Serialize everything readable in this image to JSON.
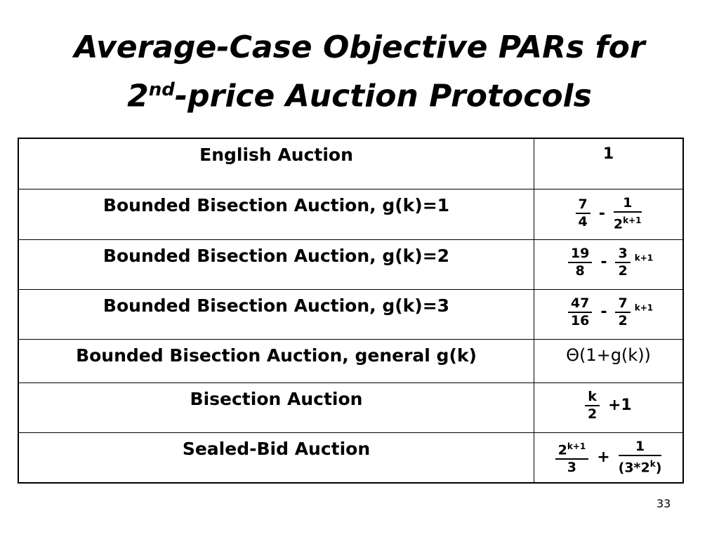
{
  "title": {
    "line1": "Average-Case Objective PARs for",
    "line2_pre": "2",
    "line2_sup": "nd",
    "line2_post": "-price Auction Protocols"
  },
  "table": {
    "rows": [
      {
        "protocol": "English Auction",
        "par": [
          {
            "text": "1"
          }
        ]
      },
      {
        "protocol": "Bounded Bisection Auction, g(k)=1",
        "par": [
          {
            "num": "7",
            "den": "4"
          },
          {
            "text": "-"
          },
          {
            "num": "1",
            "den": "2",
            "den_sup": "k+1"
          }
        ]
      },
      {
        "protocol": "Bounded Bisection Auction, g(k)=2",
        "par": [
          {
            "num": "19",
            "den": "8"
          },
          {
            "text": "-"
          },
          {
            "num": "3",
            "den": "2"
          },
          {
            "sup": "k+1"
          }
        ]
      },
      {
        "protocol": "Bounded Bisection Auction, g(k)=3",
        "par": [
          {
            "num": "47",
            "den": "16"
          },
          {
            "text": "-"
          },
          {
            "num": "7",
            "den": "2"
          },
          {
            "sup": "k+1"
          }
        ]
      },
      {
        "protocol": "Bounded Bisection Auction, general g(k)",
        "par": [
          {
            "text": "Θ(1+g(k))"
          }
        ]
      },
      {
        "protocol": "Bisection Auction",
        "par": [
          {
            "num": "k",
            "den": "2"
          },
          {
            "text": "+1"
          }
        ]
      },
      {
        "protocol": "Sealed-Bid Auction",
        "par": [
          {
            "num": "2",
            "num_sup": "k+1",
            "den": "3"
          },
          {
            "text": "+"
          },
          {
            "num": "1",
            "den": "(3*2",
            "den_sup": "k",
            "den_post": ")"
          }
        ]
      }
    ]
  },
  "page_number": "33"
}
